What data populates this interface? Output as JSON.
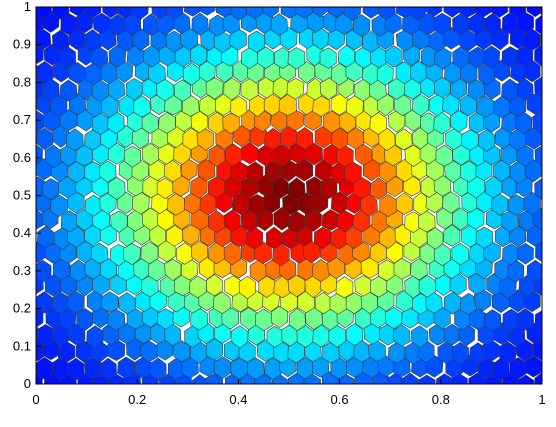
{
  "chart_data": {
    "type": "heatmap",
    "title": "",
    "xlabel": "",
    "ylabel": "",
    "xlim": [
      0,
      1
    ],
    "ylim": [
      0,
      1
    ],
    "x_ticks": [
      "0",
      "0.2",
      "0.4",
      "0.6",
      "0.8",
      "1"
    ],
    "y_ticks": [
      "0",
      "0.1",
      "0.2",
      "0.3",
      "0.4",
      "0.5",
      "0.6",
      "0.7",
      "0.8",
      "0.9",
      "1"
    ],
    "grid": false,
    "colormap": "jet",
    "cell_shape": "hexagon",
    "field": {
      "peak_x": 0.5,
      "peak_y": 0.5,
      "peak_value": 1.0,
      "sigma_x": 0.24,
      "sigma_y": 0.25
    },
    "cell_columns": 32,
    "cell_rows": 24
  },
  "colors": {
    "cell_edge": "#3a3a3a",
    "background": "#ffffff",
    "axis": "#000000"
  }
}
